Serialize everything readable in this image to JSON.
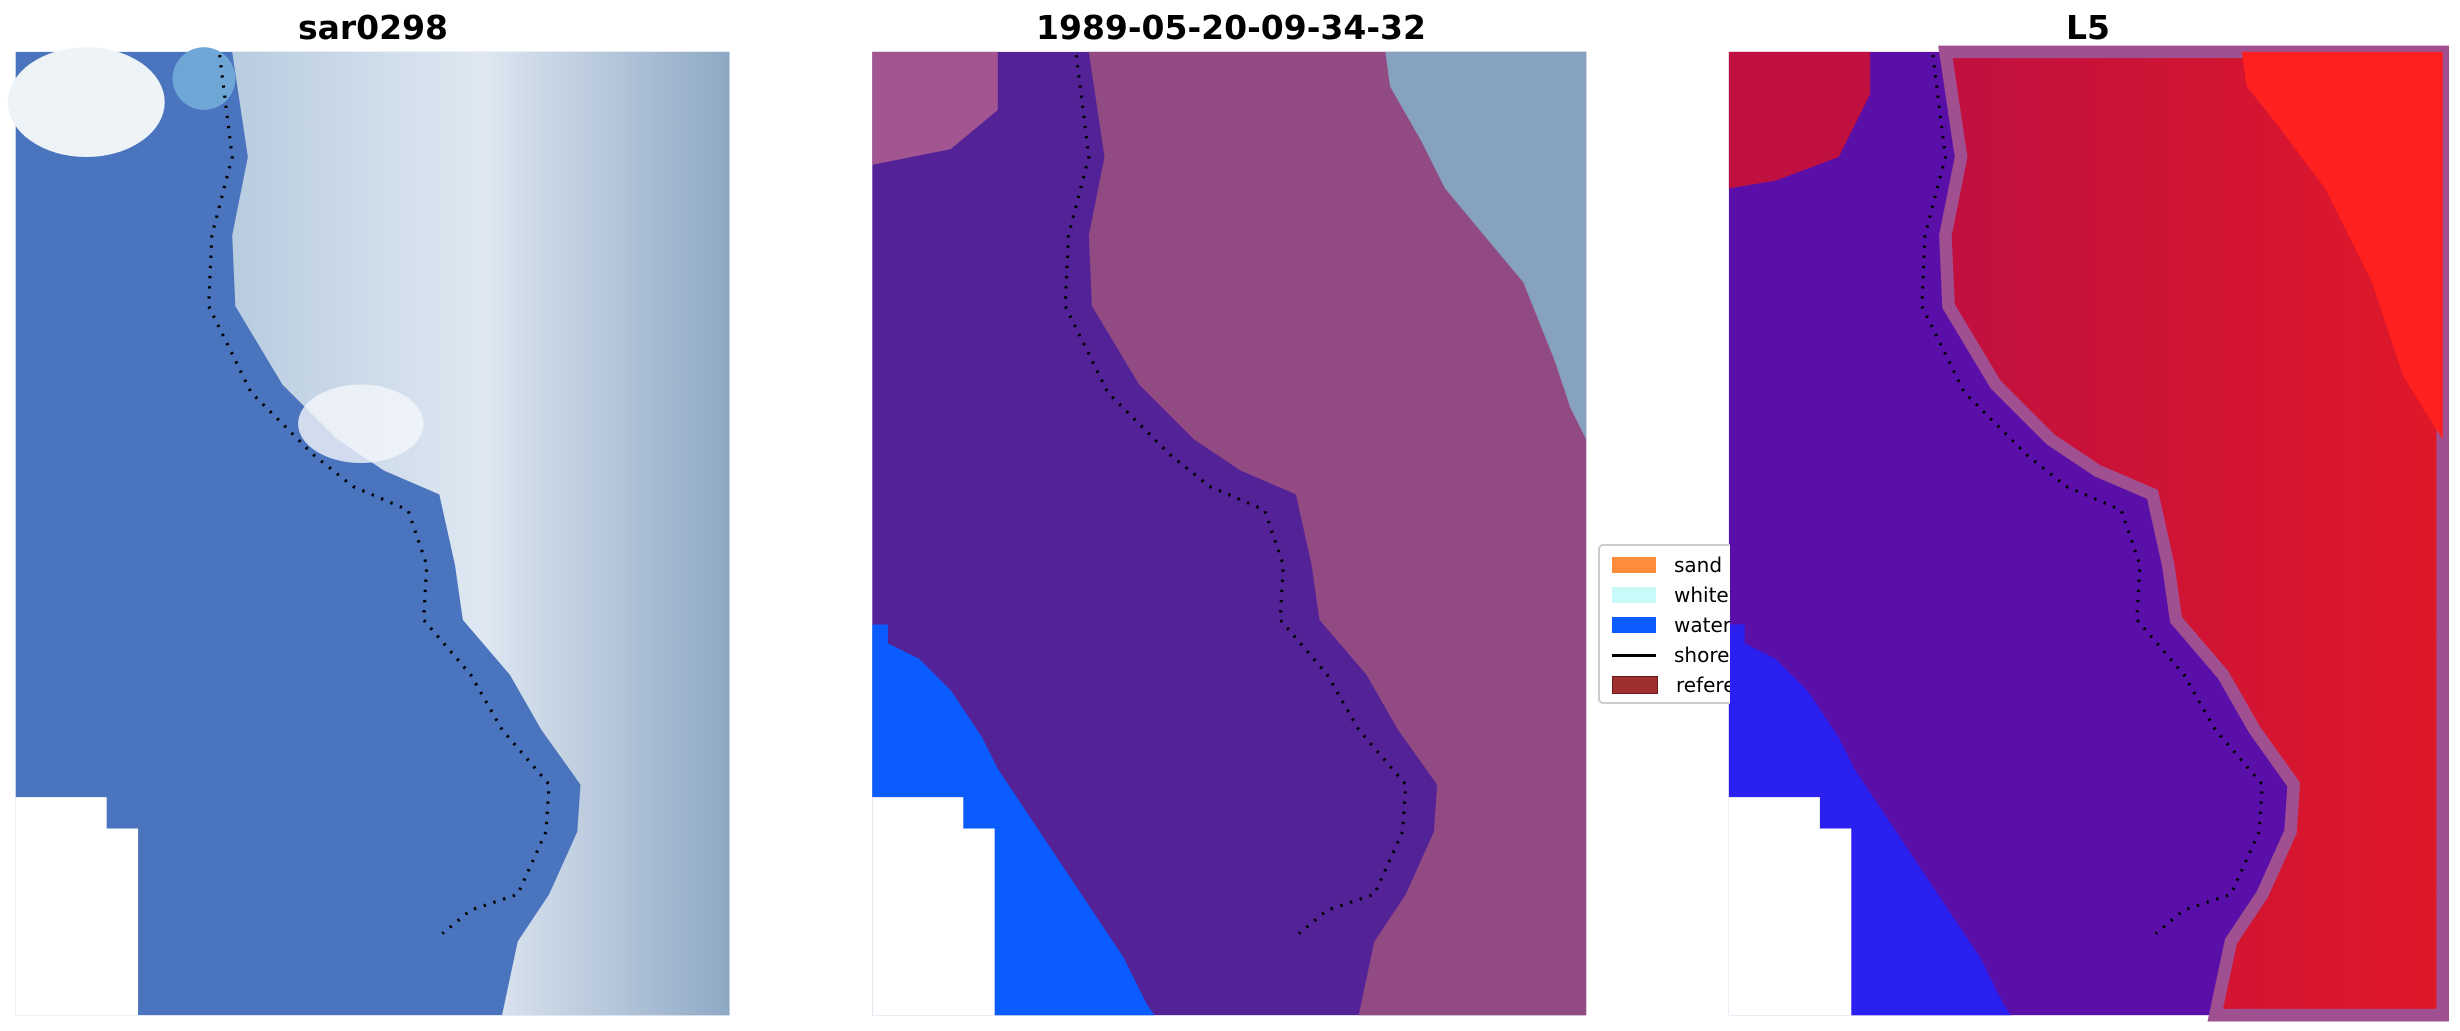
{
  "panels": [
    {
      "title": "sar0298"
    },
    {
      "title": "1989-05-20-09-34-32"
    },
    {
      "title": "L5"
    }
  ],
  "legend": {
    "items": [
      {
        "label": "sand",
        "color": "#ff8c3a",
        "kind": "patch"
      },
      {
        "label": "whitewater",
        "color": "#c8fafa",
        "kind": "patch"
      },
      {
        "label": "water",
        "color": "#0a5cff",
        "kind": "patch"
      },
      {
        "label": "shoreline",
        "color": "#000000",
        "kind": "line"
      },
      {
        "label": "reference shoreline",
        "color": "#a03030",
        "kind": "patch"
      }
    ]
  },
  "colors": {
    "water_class": "#0a5cff",
    "land_overlay": "#914a82",
    "shore_overlay": "#532296",
    "index_high": "#c8102e",
    "index_low": "#5a0fa0"
  }
}
